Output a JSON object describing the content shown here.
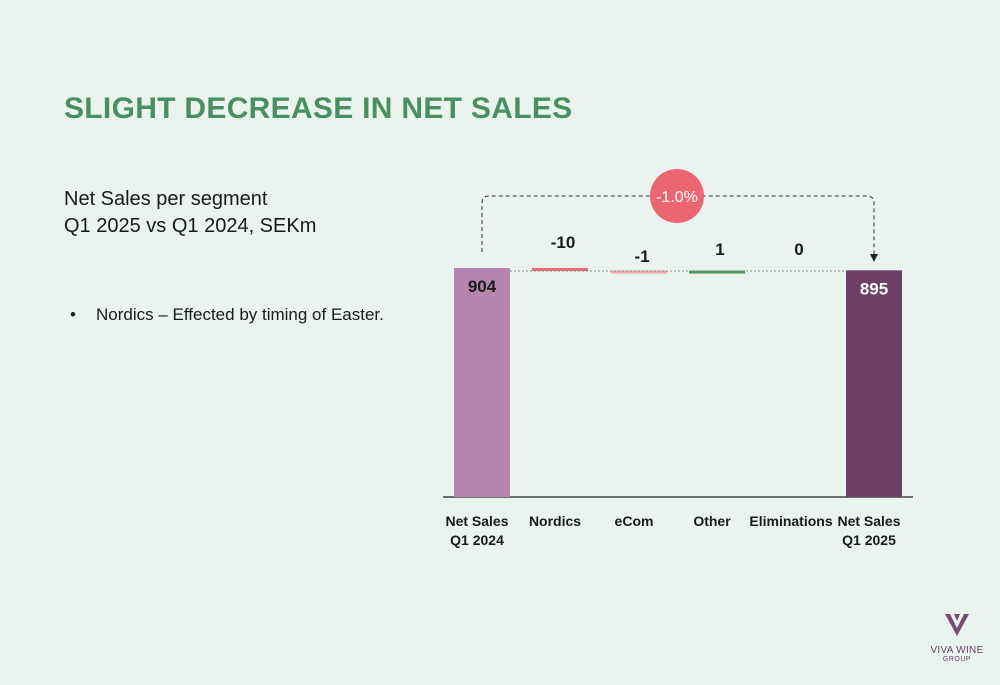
{
  "slide": {
    "title": "SLIGHT DECREASE IN NET SALES",
    "subtitle_line1": "Net Sales per segment",
    "subtitle_line2": "Q1 2025 vs Q1 2024, SEKm",
    "bullet_marker": "•",
    "bullets": [
      "Nordics – Effected by timing of Easter."
    ]
  },
  "logo": {
    "brand": "VIVA WINE",
    "sub": "GROUP",
    "icon": "viva-wine-v-icon"
  },
  "colors": {
    "start_bar": "#b585b0",
    "end_bar": "#6e4067",
    "negative": "#e86b78",
    "negative_light": "#f0a8ad",
    "positive": "#4e9a62",
    "badge": "#ec6672",
    "title_green": "#4a8f62"
  },
  "chart_data": {
    "type": "bar",
    "subtype": "waterfall",
    "unit": "SEKm",
    "categories": [
      "Net Sales\nQ1 2024",
      "Nordics",
      "eCom",
      "Other",
      "Eliminations",
      "Net Sales\nQ1 2025"
    ],
    "values": [
      904,
      -10,
      -1,
      1,
      0,
      895
    ],
    "labels": [
      "904",
      "-10",
      "-1",
      "1",
      "0",
      "895"
    ],
    "kinds": [
      "total",
      "delta",
      "delta",
      "delta",
      "delta",
      "total"
    ],
    "change_badge": "-1.0%",
    "ylim": [
      0,
      904
    ]
  }
}
